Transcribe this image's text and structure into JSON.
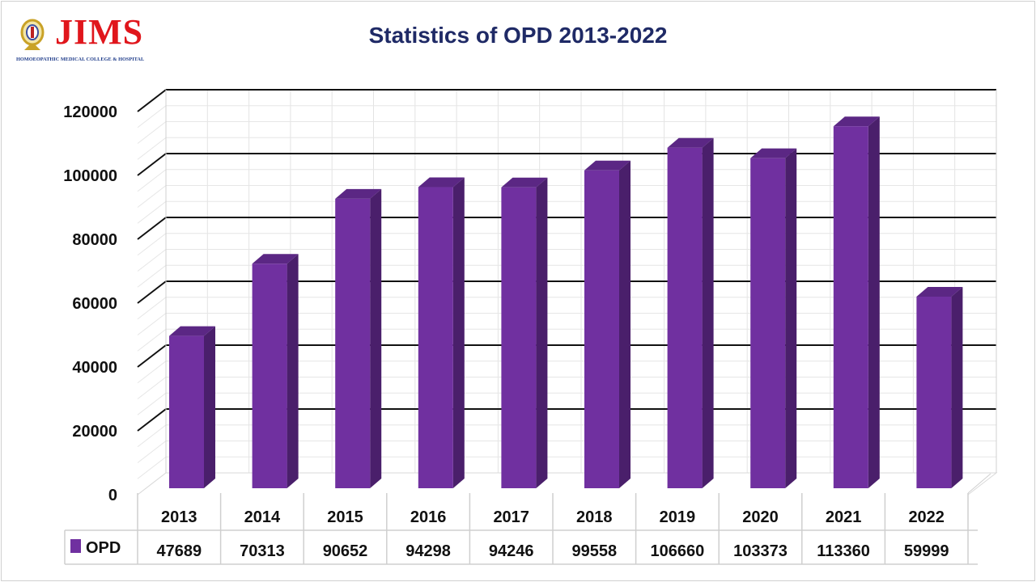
{
  "logo": {
    "text": "JIMS",
    "subtitle": "HOMOEOPATHIC MEDICAL COLLEGE & HOSPITAL"
  },
  "chart_data": {
    "type": "bar",
    "style": "3d-column with data table",
    "title": "Statistics of OPD 2013-2022",
    "categories": [
      "2013",
      "2014",
      "2015",
      "2016",
      "2017",
      "2018",
      "2019",
      "2020",
      "2021",
      "2022"
    ],
    "series": [
      {
        "name": "OPD",
        "color": "#7030a0",
        "values": [
          47689,
          70313,
          90652,
          94298,
          94246,
          99558,
          106660,
          103373,
          113360,
          59999
        ]
      }
    ],
    "ylim": [
      0,
      120000
    ],
    "yticks": [
      0,
      20000,
      40000,
      60000,
      80000,
      100000,
      120000
    ],
    "grid": true,
    "legend": "data-table-left"
  }
}
